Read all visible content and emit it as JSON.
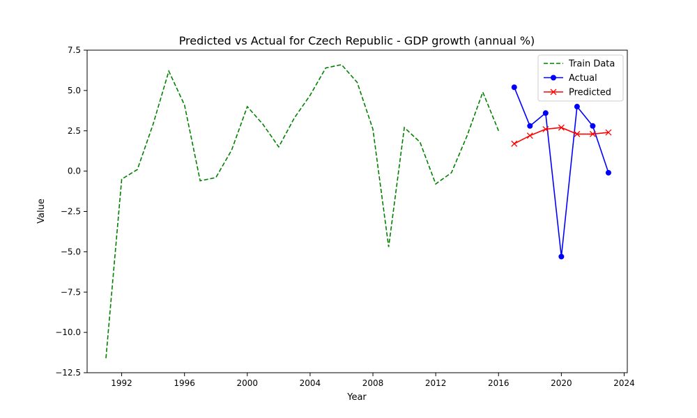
{
  "chart_data": {
    "type": "line",
    "title": "Predicted vs Actual for Czech Republic - GDP growth (annual %)",
    "xlabel": "Year",
    "ylabel": "Value",
    "xlim": [
      1989.8,
      2024.2
    ],
    "ylim": [
      -12.5,
      7.5
    ],
    "xticks": [
      1992,
      1996,
      2000,
      2004,
      2008,
      2012,
      2016,
      2020,
      2024
    ],
    "yticks": [
      -12.5,
      -10.0,
      -7.5,
      -5.0,
      -2.5,
      0.0,
      2.5,
      5.0,
      7.5
    ],
    "ytick_labels": [
      "−12.5",
      "−10.0",
      "−7.5",
      "−5.0",
      "−2.5",
      "0.0",
      "2.5",
      "5.0",
      "7.5"
    ],
    "grid": false,
    "legend_position": "top-right",
    "series": [
      {
        "name": "Train Data",
        "color": "#008000",
        "style": "dashed",
        "marker": "none",
        "x": [
          1991,
          1992,
          1993,
          1994,
          1995,
          1996,
          1997,
          1998,
          1999,
          2000,
          2001,
          2002,
          2003,
          2004,
          2005,
          2006,
          2007,
          2008,
          2009,
          2010,
          2011,
          2012,
          2013,
          2014,
          2015,
          2016
        ],
        "y": [
          -11.6,
          -0.5,
          0.1,
          2.9,
          6.2,
          4.1,
          -0.6,
          -0.4,
          1.3,
          4.0,
          2.9,
          1.5,
          3.3,
          4.7,
          6.4,
          6.6,
          5.5,
          2.6,
          -4.7,
          2.7,
          1.8,
          -0.8,
          -0.1,
          2.2,
          4.9,
          2.5
        ]
      },
      {
        "name": "Actual",
        "color": "#0000ff",
        "style": "solid",
        "marker": "circle",
        "x": [
          2017,
          2018,
          2019,
          2020,
          2021,
          2022,
          2023
        ],
        "y": [
          5.2,
          2.8,
          3.6,
          -5.3,
          4.0,
          2.8,
          -0.1
        ]
      },
      {
        "name": "Predicted",
        "color": "#ff0000",
        "style": "solid",
        "marker": "x",
        "x": [
          2017,
          2018,
          2019,
          2020,
          2021,
          2022,
          2023
        ],
        "y": [
          1.7,
          2.2,
          2.6,
          2.7,
          2.3,
          2.3,
          2.4
        ]
      }
    ]
  }
}
